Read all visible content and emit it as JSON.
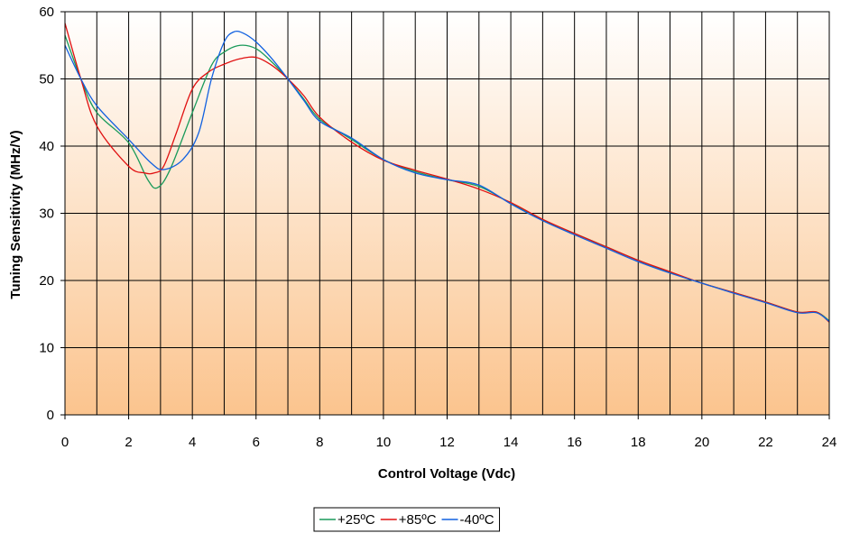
{
  "chart_data": {
    "type": "line",
    "title": "",
    "xlabel": "Control Voltage (Vdc)",
    "ylabel": "Tuning Sensitivity (MHz/V)",
    "xlim": [
      0,
      24
    ],
    "ylim": [
      0,
      60
    ],
    "xticks": [
      0,
      2,
      4,
      6,
      8,
      10,
      12,
      14,
      16,
      18,
      20,
      22,
      24
    ],
    "yticks": [
      0,
      10,
      20,
      30,
      40,
      50,
      60
    ],
    "x_minor_grid_step": 1,
    "grid": true,
    "legend_position": "bottom-center",
    "series": [
      {
        "name": "+25ºC",
        "color": "#1a9a5a",
        "points": [
          [
            0,
            56.5
          ],
          [
            0.5,
            50
          ],
          [
            1,
            45
          ],
          [
            2,
            40.5
          ],
          [
            2.6,
            35
          ],
          [
            2.9,
            33.8
          ],
          [
            3.3,
            36.5
          ],
          [
            4,
            45
          ],
          [
            4.6,
            52
          ],
          [
            5,
            54
          ],
          [
            5.5,
            55
          ],
          [
            6,
            54.5
          ],
          [
            6.5,
            52.5
          ],
          [
            7,
            50
          ],
          [
            7.5,
            47
          ],
          [
            8,
            44
          ],
          [
            9,
            41
          ],
          [
            10,
            38
          ],
          [
            11,
            36.2
          ],
          [
            12,
            35
          ],
          [
            13,
            34
          ],
          [
            14,
            31.5
          ],
          [
            15,
            29
          ],
          [
            16,
            27
          ],
          [
            17,
            25
          ],
          [
            18,
            23
          ],
          [
            19,
            21.2
          ],
          [
            20,
            19.6
          ],
          [
            21,
            18.2
          ],
          [
            22,
            16.8
          ],
          [
            23,
            15.3
          ],
          [
            23.6,
            15.3
          ],
          [
            24,
            14
          ]
        ]
      },
      {
        "name": "+85ºC",
        "color": "#e01010",
        "points": [
          [
            0,
            58.3
          ],
          [
            0.5,
            50
          ],
          [
            1,
            43
          ],
          [
            2,
            37
          ],
          [
            2.5,
            36
          ],
          [
            2.8,
            36
          ],
          [
            3.1,
            37
          ],
          [
            3.5,
            42
          ],
          [
            4,
            48.5
          ],
          [
            4.5,
            51
          ],
          [
            5,
            52.2
          ],
          [
            5.5,
            53
          ],
          [
            6,
            53.2
          ],
          [
            6.5,
            52
          ],
          [
            7,
            50
          ],
          [
            7.5,
            47.5
          ],
          [
            8,
            44.3
          ],
          [
            9,
            40.6
          ],
          [
            10,
            37.9
          ],
          [
            11,
            36.4
          ],
          [
            12,
            35.1
          ],
          [
            13,
            33.6
          ],
          [
            14,
            31.6
          ],
          [
            15,
            29.1
          ],
          [
            16,
            27
          ],
          [
            17,
            25
          ],
          [
            18,
            23
          ],
          [
            19,
            21.3
          ],
          [
            20,
            19.6
          ],
          [
            21,
            18.2
          ],
          [
            22,
            16.8
          ],
          [
            23,
            15.3
          ],
          [
            23.6,
            15.3
          ],
          [
            24,
            13.8
          ]
        ]
      },
      {
        "name": "-40ºC",
        "color": "#1060e0",
        "points": [
          [
            0,
            55
          ],
          [
            0.5,
            50
          ],
          [
            1,
            46
          ],
          [
            2,
            41
          ],
          [
            2.7,
            37.5
          ],
          [
            3.1,
            36.5
          ],
          [
            3.7,
            38
          ],
          [
            4.2,
            42
          ],
          [
            4.6,
            50
          ],
          [
            5,
            55.5
          ],
          [
            5.3,
            57
          ],
          [
            5.6,
            56.8
          ],
          [
            6,
            55.5
          ],
          [
            6.5,
            53
          ],
          [
            7,
            50
          ],
          [
            7.5,
            46.8
          ],
          [
            8,
            43.7
          ],
          [
            9,
            41.2
          ],
          [
            10,
            38
          ],
          [
            11,
            36
          ],
          [
            12,
            35
          ],
          [
            13,
            34.2
          ],
          [
            14,
            31.4
          ],
          [
            15,
            28.9
          ],
          [
            16,
            26.8
          ],
          [
            17,
            24.8
          ],
          [
            18,
            22.8
          ],
          [
            19,
            21.1
          ],
          [
            20,
            19.6
          ],
          [
            21,
            18.1
          ],
          [
            22,
            16.7
          ],
          [
            23,
            15.2
          ],
          [
            23.6,
            15.2
          ],
          [
            24,
            13.9
          ]
        ]
      }
    ]
  }
}
